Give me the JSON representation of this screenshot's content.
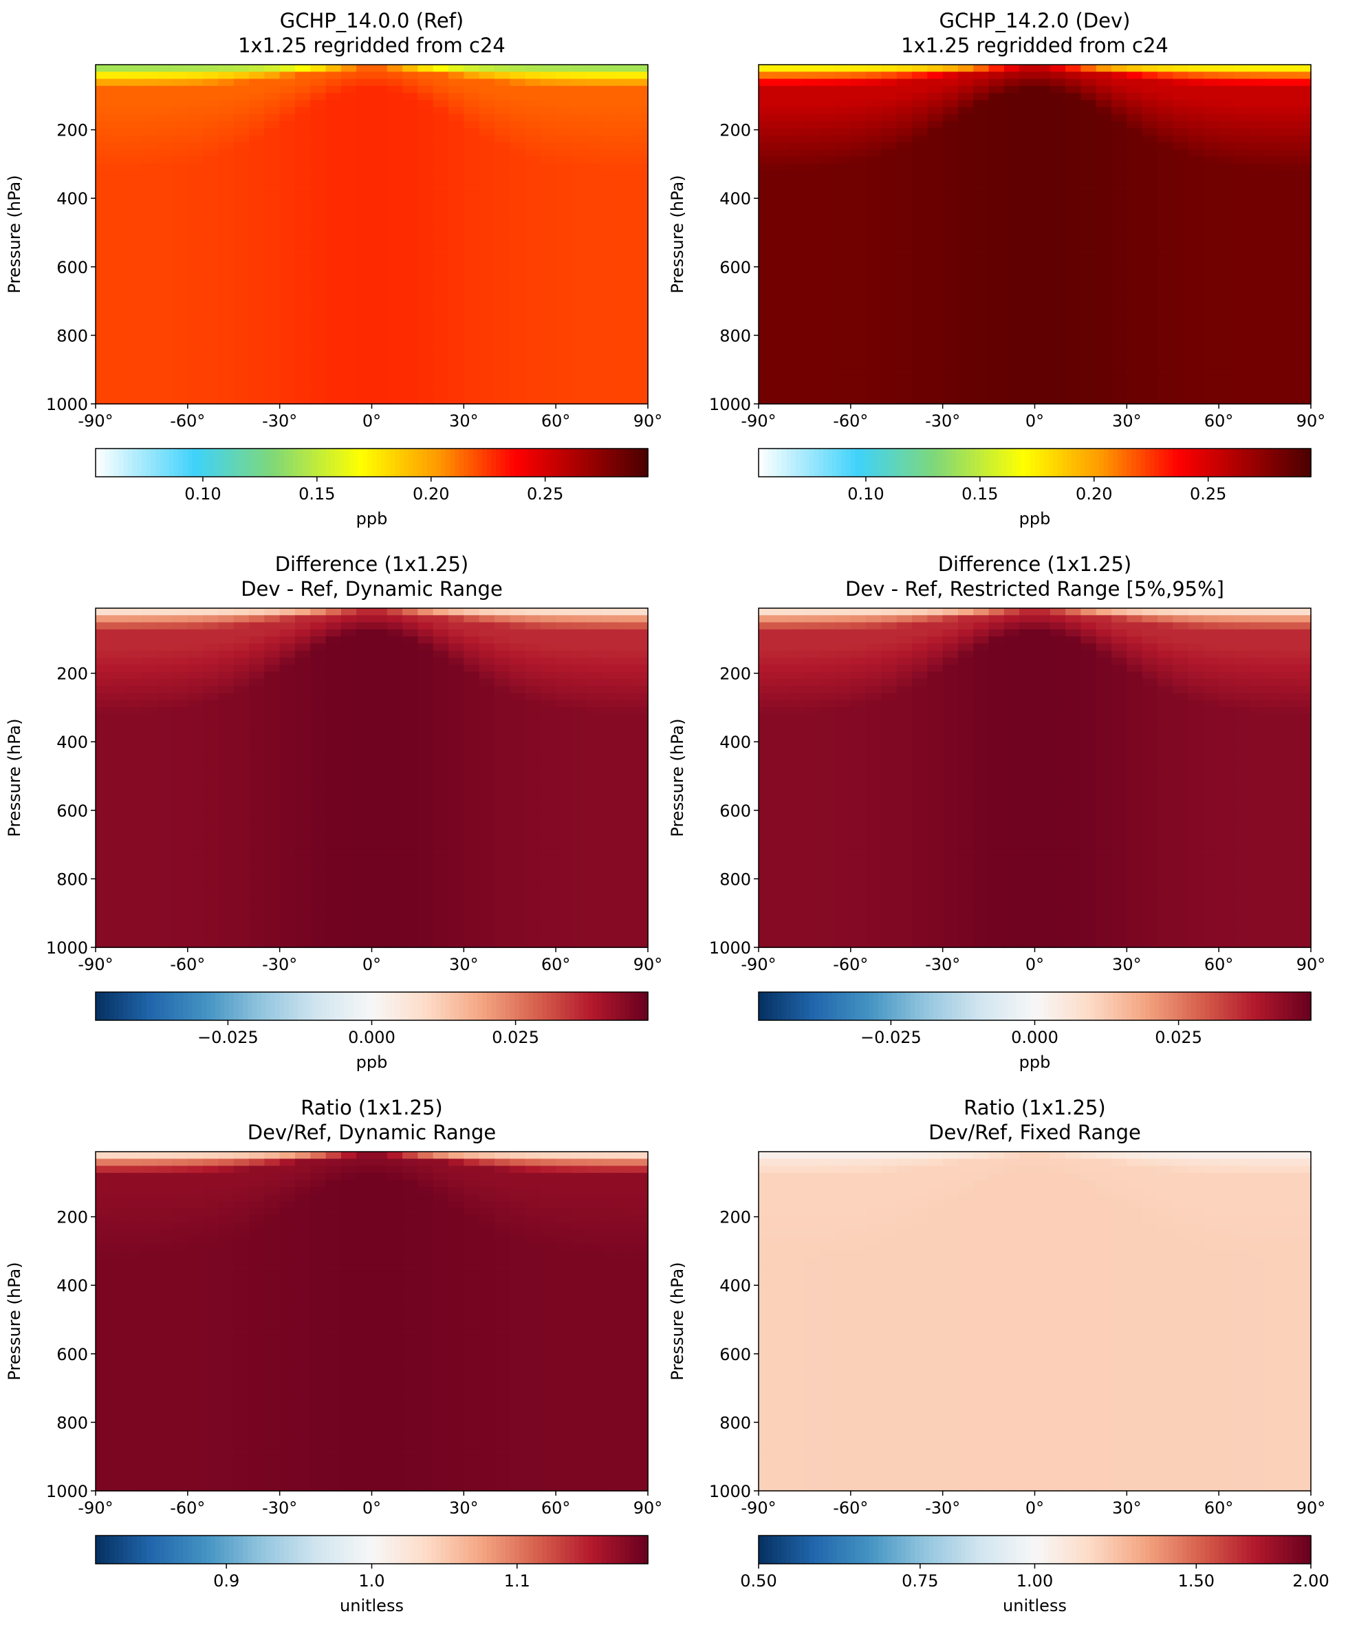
{
  "chart_data": [
    {
      "type": "heatmap",
      "title_lines": [
        "GCHP_14.0.0 (Ref)",
        "1x1.25 regridded from c24"
      ],
      "xlabel": "",
      "ylabel": "Pressure (hPa)",
      "xlim": [
        -90,
        90
      ],
      "ylim": [
        1000,
        10
      ],
      "x_ticks": [
        "-90°",
        "-60°",
        "-30°",
        "0°",
        "30°",
        "60°",
        "90°"
      ],
      "y_ticks": [
        "200",
        "400",
        "600",
        "800",
        "1000"
      ],
      "colormap": "WhGrYlRd",
      "colorbar": {
        "range": [
          0.053,
          0.295
        ],
        "ticks": [
          0.1,
          0.15,
          0.2,
          0.25
        ],
        "tick_labels": [
          "0.10",
          "0.15",
          "0.20",
          "0.25"
        ],
        "label": "ppb"
      },
      "field": {
        "top_value": 0.12,
        "stratosphere_value": 0.215,
        "bulk_value_tropics": 0.228,
        "bulk_value_extratropics": 0.222
      }
    },
    {
      "type": "heatmap",
      "title_lines": [
        "GCHP_14.2.0 (Dev)",
        "1x1.25 regridded from c24"
      ],
      "xlabel": "",
      "ylabel": "Pressure (hPa)",
      "xlim": [
        -90,
        90
      ],
      "ylim": [
        1000,
        10
      ],
      "x_ticks": [
        "-90°",
        "-60°",
        "-30°",
        "0°",
        "30°",
        "60°",
        "90°"
      ],
      "y_ticks": [
        "200",
        "400",
        "600",
        "800",
        "1000"
      ],
      "colormap": "WhGrYlRd",
      "colorbar": {
        "range": [
          0.053,
          0.295
        ],
        "ticks": [
          0.1,
          0.15,
          0.2,
          0.25
        ],
        "tick_labels": [
          "0.10",
          "0.15",
          "0.20",
          "0.25"
        ],
        "label": "ppb"
      },
      "field": {
        "top_value": 0.15,
        "stratosphere_value": 0.255,
        "bulk_value_tropics": 0.288,
        "bulk_value_extratropics": 0.282
      }
    },
    {
      "type": "heatmap",
      "title_lines": [
        "Difference (1x1.25)",
        "Dev - Ref, Dynamic Range"
      ],
      "xlabel": "",
      "ylabel": "Pressure (hPa)",
      "xlim": [
        -90,
        90
      ],
      "ylim": [
        1000,
        10
      ],
      "x_ticks": [
        "-90°",
        "-60°",
        "-30°",
        "0°",
        "30°",
        "60°",
        "90°"
      ],
      "y_ticks": [
        "200",
        "400",
        "600",
        "800",
        "1000"
      ],
      "colormap": "RdBu_r",
      "colorbar": {
        "range": [
          -0.048,
          0.048
        ],
        "ticks": [
          -0.025,
          0.0,
          0.025
        ],
        "tick_labels": [
          "−0.025",
          "0.000",
          "0.025"
        ],
        "label": "ppb"
      },
      "field": {
        "top_value": 0.0,
        "stratosphere_value": 0.036,
        "bulk_value_tropics": 0.047,
        "bulk_value_extratropics": 0.044
      }
    },
    {
      "type": "heatmap",
      "title_lines": [
        "Difference (1x1.25)",
        "Dev - Ref, Restricted Range [5%,95%]"
      ],
      "xlabel": "",
      "ylabel": "Pressure (hPa)",
      "xlim": [
        -90,
        90
      ],
      "ylim": [
        1000,
        10
      ],
      "x_ticks": [
        "-90°",
        "-60°",
        "-30°",
        "0°",
        "30°",
        "60°",
        "90°"
      ],
      "y_ticks": [
        "200",
        "400",
        "600",
        "800",
        "1000"
      ],
      "colormap": "RdBu_r",
      "colorbar": {
        "range": [
          -0.048,
          0.048
        ],
        "ticks": [
          -0.025,
          0.0,
          0.025
        ],
        "tick_labels": [
          "−0.025",
          "0.000",
          "0.025"
        ],
        "label": "ppb"
      },
      "field": {
        "top_value": 0.0,
        "stratosphere_value": 0.036,
        "bulk_value_tropics": 0.047,
        "bulk_value_extratropics": 0.044
      }
    },
    {
      "type": "heatmap",
      "title_lines": [
        "Ratio (1x1.25)",
        "Dev/Ref, Dynamic Range"
      ],
      "xlabel": "",
      "ylabel": "Pressure (hPa)",
      "xlim": [
        -90,
        90
      ],
      "ylim": [
        1000,
        10
      ],
      "x_ticks": [
        "-90°",
        "-60°",
        "-30°",
        "0°",
        "30°",
        "60°",
        "90°"
      ],
      "y_ticks": [
        "200",
        "400",
        "600",
        "800",
        "1000"
      ],
      "colormap": "RdBu_r",
      "colorbar": {
        "range": [
          0.81,
          1.19
        ],
        "ticks": [
          0.9,
          1.0,
          1.1
        ],
        "tick_labels": [
          "0.9",
          "1.0",
          "1.1"
        ],
        "label": "unitless"
      },
      "field": {
        "top_value": 1.0,
        "stratosphere_value": 1.17,
        "bulk_value_tropics": 1.185,
        "bulk_value_extratropics": 1.18
      }
    },
    {
      "type": "heatmap",
      "title_lines": [
        "Ratio (1x1.25)",
        "Dev/Ref, Fixed Range"
      ],
      "xlabel": "",
      "ylabel": "Pressure (hPa)",
      "xlim": [
        -90,
        90
      ],
      "ylim": [
        1000,
        10
      ],
      "x_ticks": [
        "-90°",
        "-60°",
        "-30°",
        "0°",
        "30°",
        "60°",
        "90°"
      ],
      "y_ticks": [
        "200",
        "400",
        "600",
        "800",
        "1000"
      ],
      "colormap": "RdBu_r_log",
      "colorbar": {
        "range": [
          0.5,
          2.0
        ],
        "scale": "log",
        "ticks": [
          0.5,
          0.75,
          1.0,
          1.5,
          2.0
        ],
        "tick_labels": [
          "0.50",
          "0.75",
          "1.00",
          "1.50",
          "2.00"
        ],
        "label": "unitless"
      },
      "field": {
        "top_value": 1.0,
        "stratosphere_value": 1.17,
        "bulk_value_tropics": 1.185,
        "bulk_value_extratropics": 1.18
      }
    }
  ]
}
